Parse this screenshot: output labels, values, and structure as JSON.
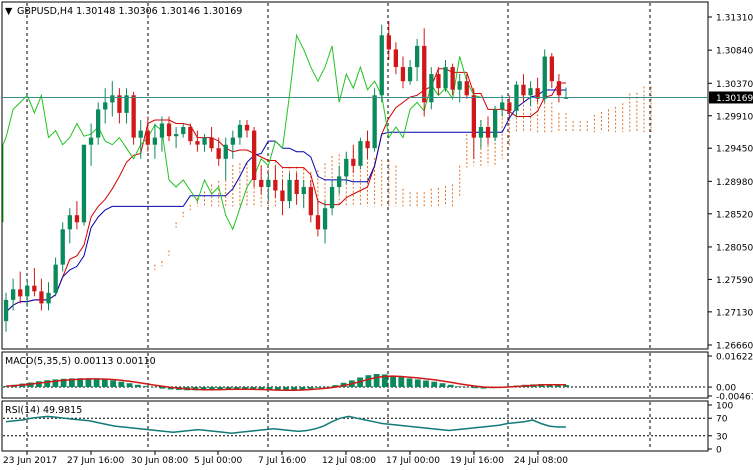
{
  "colors": {
    "background": "#ffffff",
    "frame": "#000000",
    "bull_candle": "#0a8a5a",
    "bear_candle": "#d01818",
    "price_line": "#3b8c8c",
    "tenkan": "#d40000",
    "kijun": "#0000b0",
    "chikou": "#22c322",
    "cloud_up": "#e07020",
    "cloud_down": "#b080b0",
    "macd_hist": "#0a8a5a",
    "macd_signal": "#d01818",
    "rsi": "#137a7a",
    "grid": "#000000"
  },
  "main": {
    "title": "GBPUSD,H4  1.30148 1.30306 1.30146 1.30169",
    "current_price": "1.30169",
    "price_ticks": [
      "1.31310",
      "1.30840",
      "1.30370",
      "1.29910",
      "1.29450",
      "1.28980",
      "1.28520",
      "1.28050",
      "1.27590",
      "1.27130",
      "1.26660"
    ]
  },
  "macd": {
    "title": "MACD(5,35,5) 0.00113 0.00110",
    "ticks": [
      "0.01622",
      "0.00",
      "-0.00467"
    ]
  },
  "rsi": {
    "title": "RSI(14) 49.9815",
    "ticks": [
      "100",
      "70",
      "30",
      "0"
    ]
  },
  "time_axis": {
    "labels": [
      "23 Jun 2017",
      "27 Jun 16:00",
      "30 Jun 08:00",
      "5 Jul 00:00",
      "7 Jul 16:00",
      "12 Jul 08:00",
      "17 Jul 00:00",
      "19 Jul 16:00",
      "24 Jul 08:00"
    ]
  },
  "chart_data": {
    "type": "candlestick",
    "symbol": "GBPUSD",
    "timeframe": "H4",
    "ylim": [
      1.2666,
      1.3131
    ],
    "series": [
      {
        "name": "OHLC",
        "points": [
          [
            1.27,
            1.274,
            1.2685,
            1.273
          ],
          [
            1.273,
            1.276,
            1.2715,
            1.2745
          ],
          [
            1.2745,
            1.277,
            1.2725,
            1.2735
          ],
          [
            1.2735,
            1.276,
            1.272,
            1.275
          ],
          [
            1.275,
            1.2775,
            1.2735,
            1.2742
          ],
          [
            1.2742,
            1.276,
            1.2715,
            1.2725
          ],
          [
            1.2725,
            1.2755,
            1.2715,
            1.274
          ],
          [
            1.274,
            1.279,
            1.2735,
            1.278
          ],
          [
            1.278,
            1.284,
            1.277,
            1.283
          ],
          [
            1.283,
            1.286,
            1.281,
            1.285
          ],
          [
            1.285,
            1.287,
            1.283,
            1.284
          ],
          [
            1.284,
            1.29,
            1.2835,
            1.295
          ],
          [
            1.295,
            1.298,
            1.292,
            1.296
          ],
          [
            1.296,
            1.301,
            1.295,
            1.3
          ],
          [
            1.3,
            1.303,
            1.298,
            1.301
          ],
          [
            1.301,
            1.304,
            1.299,
            1.302
          ],
          [
            1.302,
            1.303,
            1.298,
            1.2995
          ],
          [
            1.2995,
            1.303,
            1.298,
            1.302
          ],
          [
            1.302,
            1.3025,
            1.295,
            1.296
          ],
          [
            1.296,
            1.2985,
            1.293,
            1.297
          ],
          [
            1.297,
            1.299,
            1.294,
            1.295
          ],
          [
            1.295,
            1.298,
            1.293,
            1.296
          ],
          [
            1.296,
            1.299,
            1.294,
            1.298
          ],
          [
            1.298,
            1.299,
            1.2955,
            1.2962
          ],
          [
            1.2962,
            1.2975,
            1.2945,
            1.2965
          ],
          [
            1.2965,
            1.298,
            1.296,
            1.2975
          ],
          [
            1.2975,
            1.298,
            1.295,
            1.2955
          ],
          [
            1.2955,
            1.297,
            1.294,
            1.295
          ],
          [
            1.295,
            1.2965,
            1.294,
            1.296
          ],
          [
            1.296,
            1.2975,
            1.294,
            1.2945
          ],
          [
            1.2945,
            1.296,
            1.292,
            1.293
          ],
          [
            1.293,
            1.296,
            1.29,
            1.295
          ],
          [
            1.295,
            1.297,
            1.293,
            1.296
          ],
          [
            1.296,
            1.2985,
            1.295,
            1.2978
          ],
          [
            1.2978,
            1.2985,
            1.296,
            1.297
          ],
          [
            1.297,
            1.2975,
            1.289,
            1.29
          ],
          [
            1.29,
            1.292,
            1.288,
            1.289
          ],
          [
            1.289,
            1.291,
            1.287,
            1.29
          ],
          [
            1.29,
            1.292,
            1.2875,
            1.2885
          ],
          [
            1.2885,
            1.29,
            1.285,
            1.287
          ],
          [
            1.287,
            1.291,
            1.286,
            1.29
          ],
          [
            1.29,
            1.291,
            1.2865,
            1.288
          ],
          [
            1.288,
            1.29,
            1.286,
            1.289
          ],
          [
            1.289,
            1.29,
            1.284,
            1.285
          ],
          [
            1.285,
            1.287,
            1.282,
            1.283
          ],
          [
            1.283,
            1.287,
            1.281,
            1.286
          ],
          [
            1.286,
            1.29,
            1.285,
            1.289
          ],
          [
            1.289,
            1.292,
            1.288,
            1.2905
          ],
          [
            1.2905,
            1.294,
            1.2895,
            1.293
          ],
          [
            1.293,
            1.295,
            1.291,
            1.292
          ],
          [
            1.292,
            1.296,
            1.2915,
            1.2955
          ],
          [
            1.2955,
            1.297,
            1.293,
            1.2945
          ],
          [
            1.2945,
            1.303,
            1.294,
            1.302
          ],
          [
            1.302,
            1.312,
            1.301,
            1.3105
          ],
          [
            1.3105,
            1.3125,
            1.307,
            1.3085
          ],
          [
            1.3085,
            1.3095,
            1.305,
            1.306
          ],
          [
            1.306,
            1.3075,
            1.303,
            1.304
          ],
          [
            1.304,
            1.307,
            1.3035,
            1.306
          ],
          [
            1.306,
            1.31,
            1.304,
            1.309
          ],
          [
            1.309,
            1.3115,
            1.299,
            1.301
          ],
          [
            1.301,
            1.306,
            1.3,
            1.305
          ],
          [
            1.305,
            1.306,
            1.302,
            1.303
          ],
          [
            1.303,
            1.307,
            1.3025,
            1.306
          ],
          [
            1.306,
            1.3065,
            1.302,
            1.3028
          ],
          [
            1.3028,
            1.305,
            1.301,
            1.304
          ],
          [
            1.304,
            1.305,
            1.3015,
            1.302
          ],
          [
            1.302,
            1.303,
            1.293,
            1.296
          ],
          [
            1.296,
            1.2985,
            1.2945,
            1.2975
          ],
          [
            1.2975,
            1.299,
            1.295,
            1.296
          ],
          [
            1.296,
            1.3005,
            1.2955,
            1.3
          ],
          [
            1.3,
            1.302,
            1.299,
            1.301
          ],
          [
            1.301,
            1.302,
            1.299,
            1.2998
          ],
          [
            1.2998,
            1.304,
            1.299,
            1.3035
          ],
          [
            1.3035,
            1.305,
            1.301,
            1.302
          ],
          [
            1.302,
            1.304,
            1.3005,
            1.303
          ],
          [
            1.303,
            1.3045,
            1.301,
            1.3015
          ],
          [
            1.3015,
            1.3085,
            1.301,
            1.3075
          ],
          [
            1.3075,
            1.308,
            1.303,
            1.304
          ],
          [
            1.304,
            1.305,
            1.301,
            1.302
          ],
          [
            1.3015,
            1.3031,
            1.3015,
            1.3017
          ]
        ]
      },
      {
        "name": "MACD histogram",
        "values": [
          0.0005,
          0.0012,
          0.0018,
          0.0024,
          0.003,
          0.0036,
          0.004,
          0.0043,
          0.0045,
          0.0046,
          0.0045,
          0.0043,
          0.004,
          0.0035,
          0.0028,
          0.002,
          0.0012,
          0.0005,
          -0.0002,
          -0.0008,
          -0.0012,
          -0.0015,
          -0.0017,
          -0.0017,
          -0.0016,
          -0.0014,
          -0.0012,
          -0.0011,
          -0.001,
          -0.0011,
          -0.0013,
          -0.0015,
          -0.0017,
          -0.0018,
          -0.0018,
          -0.0016,
          -0.0013,
          -0.0009,
          -0.0004,
          0.0002,
          0.001,
          0.0022,
          0.0035,
          0.005,
          0.0062,
          0.0068,
          0.0066,
          0.006,
          0.0052,
          0.0045,
          0.004,
          0.0034,
          0.0028,
          0.002,
          0.0012,
          0.0004,
          -0.0002,
          -0.0006,
          -0.0008,
          -0.0006,
          -0.0002,
          0.0004,
          0.0008,
          0.0012,
          0.0014,
          0.0016,
          0.0014,
          0.0012,
          0.0011
        ]
      },
      {
        "name": "RSI",
        "values": [
          62,
          64,
          66,
          70,
          72,
          74,
          72,
          70,
          68,
          66,
          64,
          60,
          56,
          52,
          50,
          48,
          46,
          44,
          42,
          40,
          38,
          40,
          42,
          44,
          42,
          40,
          38,
          36,
          38,
          40,
          42,
          44,
          46,
          44,
          42,
          40,
          42,
          46,
          52,
          62,
          70,
          74,
          70,
          66,
          62,
          58,
          56,
          54,
          52,
          50,
          48,
          46,
          44,
          42,
          44,
          46,
          48,
          50,
          52,
          54,
          58,
          60,
          62,
          66,
          58,
          52,
          50,
          50
        ]
      }
    ]
  }
}
